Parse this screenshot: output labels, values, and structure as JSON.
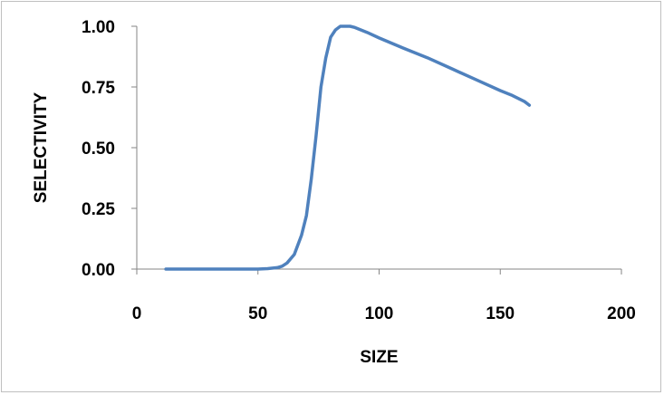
{
  "chart_data": {
    "type": "line",
    "title": "",
    "xlabel": "SIZE",
    "ylabel": "SELECTIVITY",
    "xlim": [
      0,
      200
    ],
    "ylim": [
      0,
      1
    ],
    "x_ticks": [
      "0",
      "50",
      "100",
      "150",
      "200"
    ],
    "y_ticks": [
      "0.00",
      "0.25",
      "0.50",
      "0.75",
      "1.00"
    ],
    "grid": false,
    "legend": "none",
    "line_color": "#4f81bd",
    "series": [
      {
        "x": [
          12,
          20,
          30,
          40,
          50,
          54,
          58,
          60,
          62,
          65,
          68,
          70,
          72,
          74,
          76,
          78,
          80,
          82,
          84,
          86,
          88,
          90,
          95,
          100,
          110,
          120,
          130,
          140,
          150,
          155,
          160,
          162
        ],
        "values": [
          0.0,
          0.0,
          0.0,
          0.0,
          0.0,
          0.002,
          0.006,
          0.012,
          0.025,
          0.06,
          0.14,
          0.22,
          0.37,
          0.55,
          0.75,
          0.87,
          0.955,
          0.985,
          1.0,
          1.0,
          1.0,
          0.995,
          0.975,
          0.952,
          0.91,
          0.87,
          0.825,
          0.78,
          0.735,
          0.715,
          0.69,
          0.675
        ]
      }
    ]
  }
}
